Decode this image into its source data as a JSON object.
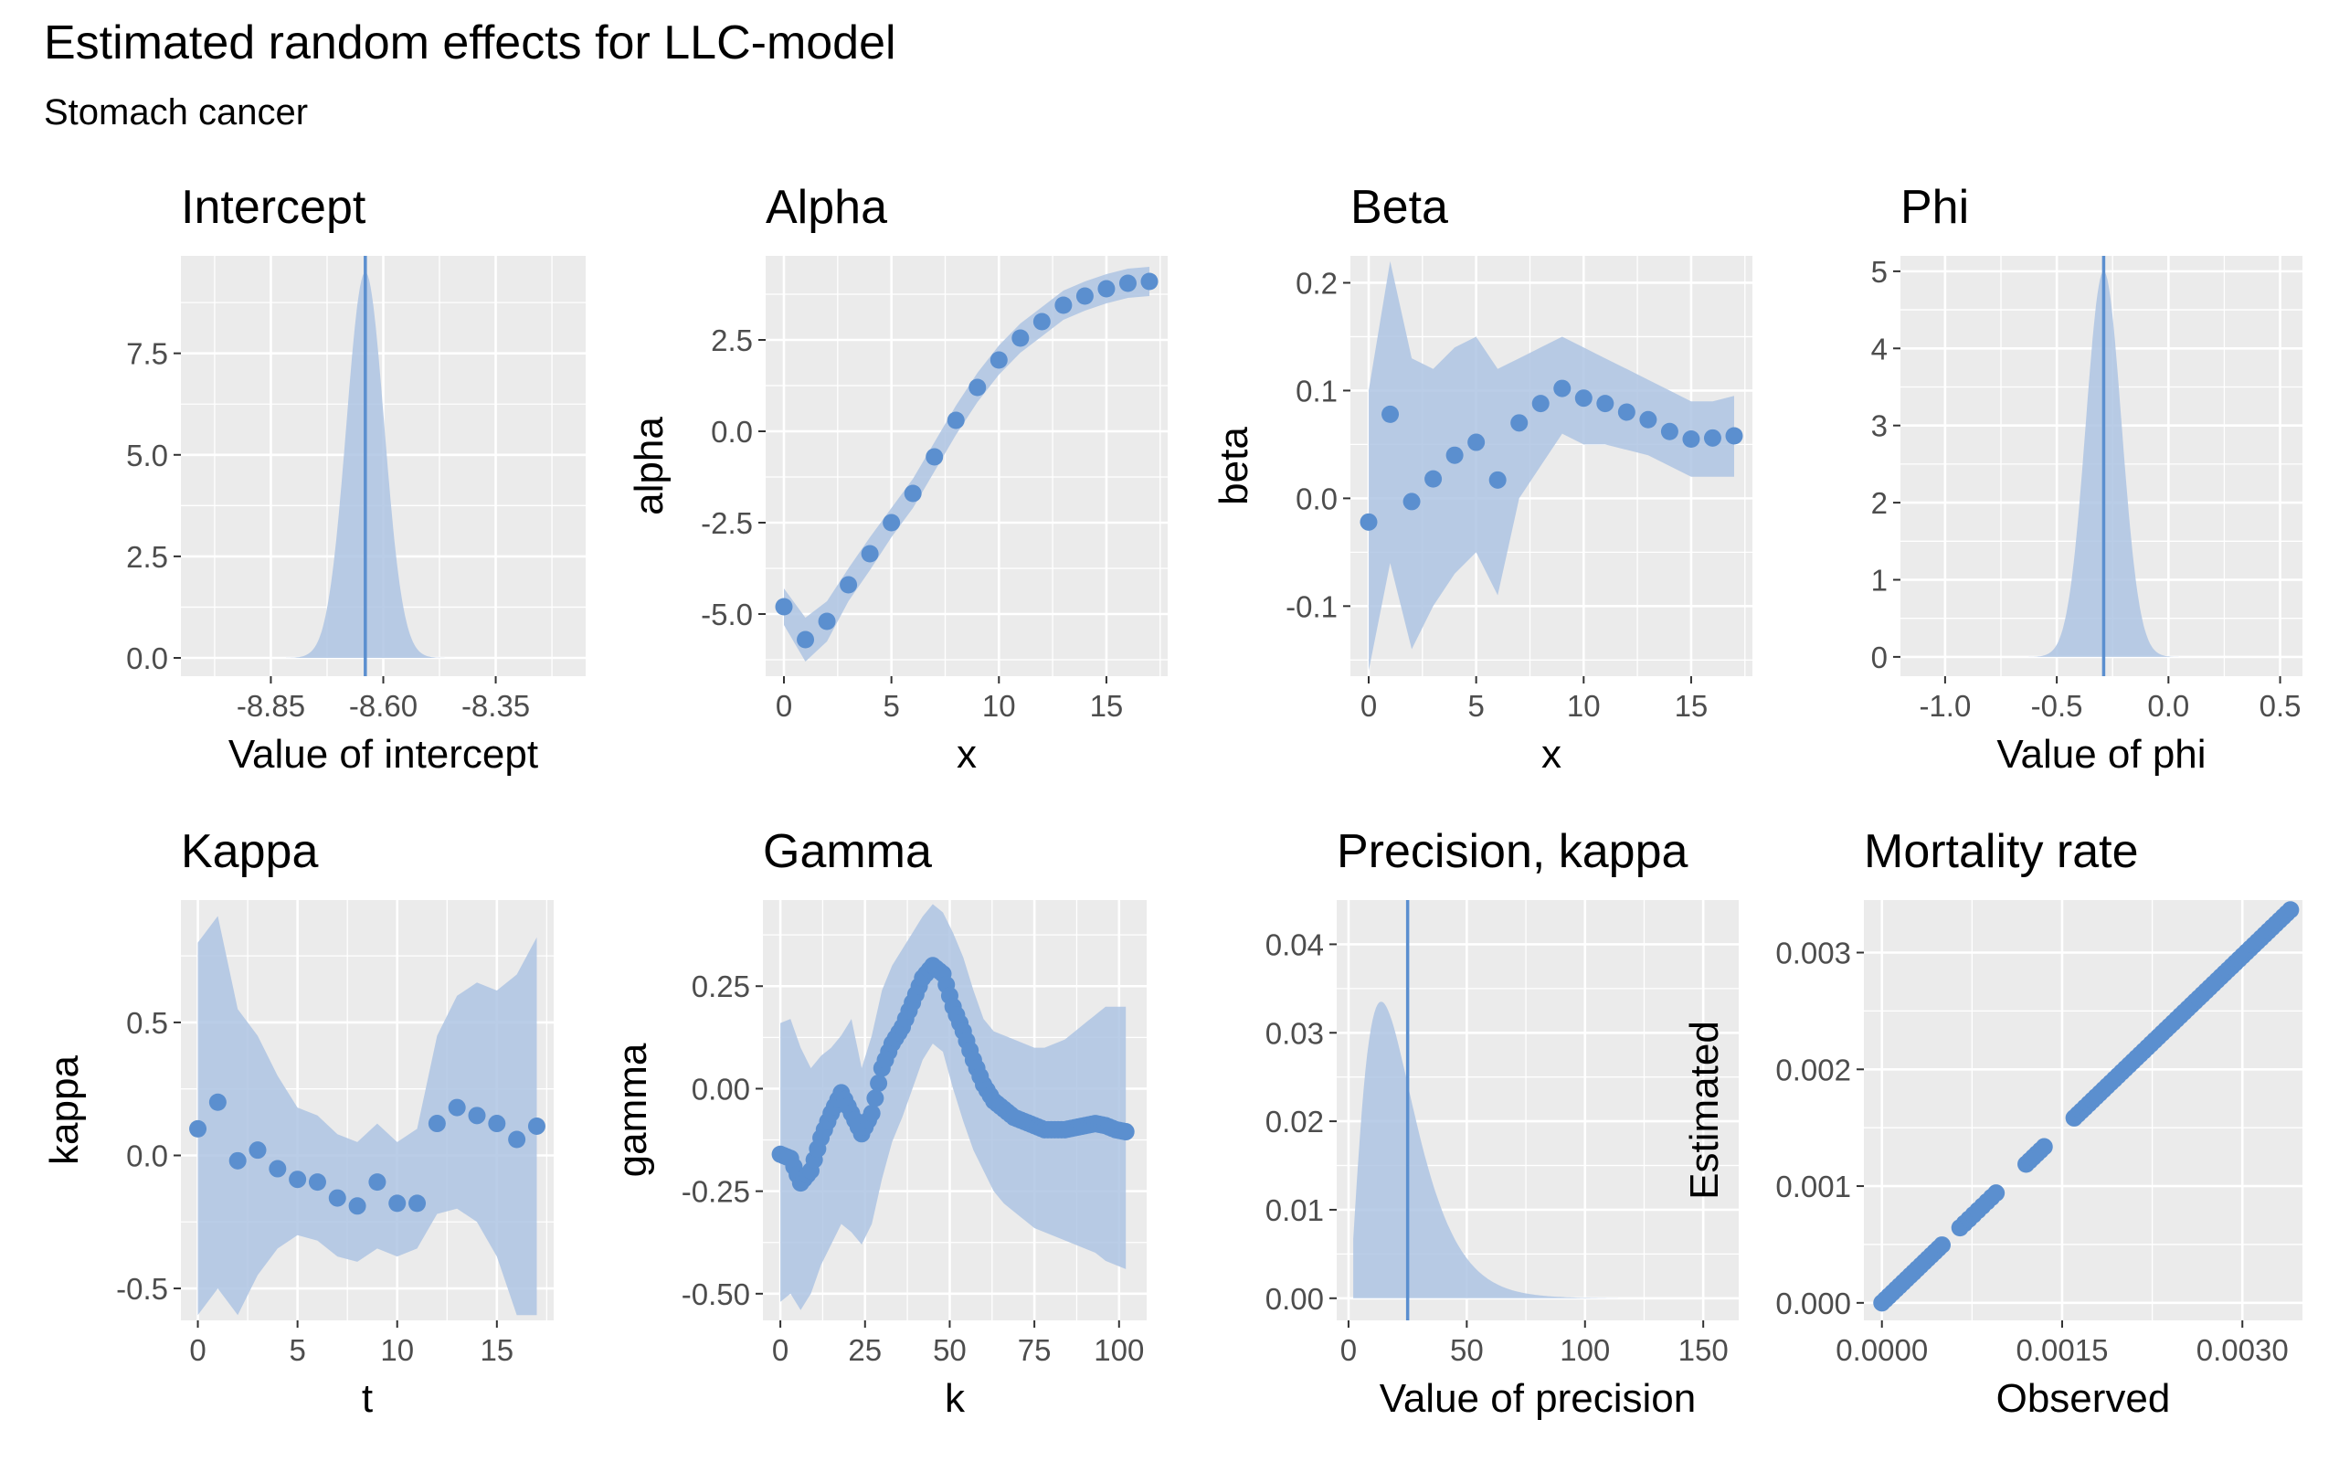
{
  "title": "Estimated random effects for LLC-model",
  "subtitle": "Stomach cancer",
  "colors": {
    "accent": "#5b8fcf",
    "band": "#aec4e3",
    "panel_bg": "#ebebeb",
    "grid": "#ffffff",
    "tick": "#4d4d4d"
  },
  "chart_data": [
    {
      "id": "intercept",
      "type": "area",
      "title": "Intercept",
      "xlabel": "Value of intercept",
      "ylabel": "",
      "xlim": [
        -9.05,
        -8.15
      ],
      "ylim": [
        -0.45,
        9.9
      ],
      "xticks": [
        -8.85,
        -8.6,
        -8.35
      ],
      "xtick_labels": [
        "-8.85",
        "-8.60",
        "-8.35"
      ],
      "yticks": [
        0,
        2.5,
        5,
        7.5
      ],
      "ytick_labels": [
        "0.0",
        "2.5",
        "5.0",
        "7.5"
      ],
      "density": {
        "mean": -8.64,
        "sd": 0.042,
        "peak": 9.5
      },
      "vline": -8.64
    },
    {
      "id": "alpha",
      "type": "scatter",
      "title": "Alpha",
      "xlabel": "x",
      "ylabel": "alpha",
      "xlim": [
        -0.85,
        17.85
      ],
      "ylim": [
        -6.7,
        4.8
      ],
      "xticks": [
        0,
        5,
        10,
        15
      ],
      "xtick_labels": [
        "0",
        "5",
        "10",
        "15"
      ],
      "yticks": [
        -5,
        -2.5,
        0,
        2.5
      ],
      "ytick_labels": [
        "-5.0",
        "-2.5",
        "0.0",
        "2.5"
      ],
      "x": [
        0,
        1,
        2,
        3,
        4,
        5,
        6,
        7,
        8,
        9,
        10,
        11,
        12,
        13,
        14,
        15,
        16,
        17
      ],
      "y": [
        -4.8,
        -5.7,
        -5.2,
        -4.2,
        -3.35,
        -2.5,
        -1.7,
        -0.7,
        0.3,
        1.2,
        1.95,
        2.55,
        3.0,
        3.45,
        3.7,
        3.9,
        4.05,
        4.1
      ],
      "lower": [
        -5.3,
        -6.3,
        -5.75,
        -4.65,
        -3.8,
        -2.9,
        -2.1,
        -1.1,
        -0.1,
        0.8,
        1.55,
        2.15,
        2.6,
        3.05,
        3.3,
        3.5,
        3.65,
        3.7
      ],
      "upper": [
        -4.3,
        -5.1,
        -4.65,
        -3.75,
        -2.9,
        -2.1,
        -1.3,
        -0.3,
        0.7,
        1.6,
        2.35,
        2.95,
        3.4,
        3.85,
        4.1,
        4.3,
        4.45,
        4.5
      ]
    },
    {
      "id": "beta",
      "type": "scatter",
      "title": "Beta",
      "xlabel": "x",
      "ylabel": "beta",
      "xlim": [
        -0.85,
        17.85
      ],
      "ylim": [
        -0.165,
        0.225
      ],
      "xticks": [
        0,
        5,
        10,
        15
      ],
      "xtick_labels": [
        "0",
        "5",
        "10",
        "15"
      ],
      "yticks": [
        -0.1,
        0,
        0.1,
        0.2
      ],
      "ytick_labels": [
        "-0.1",
        "0.0",
        "0.1",
        "0.2"
      ],
      "x": [
        0,
        1,
        2,
        3,
        4,
        5,
        6,
        7,
        8,
        9,
        10,
        11,
        12,
        13,
        14,
        15,
        16,
        17
      ],
      "y": [
        -0.022,
        0.078,
        -0.003,
        0.018,
        0.04,
        0.052,
        0.017,
        0.07,
        0.088,
        0.102,
        0.093,
        0.088,
        0.08,
        0.073,
        0.062,
        0.055,
        0.056,
        0.058
      ],
      "lower": [
        -0.16,
        -0.06,
        -0.14,
        -0.1,
        -0.07,
        -0.05,
        -0.09,
        0.0,
        0.03,
        0.06,
        0.05,
        0.05,
        0.045,
        0.04,
        0.03,
        0.02,
        0.02,
        0.02
      ],
      "upper": [
        0.1,
        0.22,
        0.13,
        0.12,
        0.14,
        0.15,
        0.12,
        0.13,
        0.14,
        0.15,
        0.14,
        0.13,
        0.12,
        0.11,
        0.1,
        0.09,
        0.09,
        0.095
      ]
    },
    {
      "id": "phi",
      "type": "area",
      "title": "Phi",
      "xlabel": "Value of phi",
      "ylabel": "",
      "xlim": [
        -1.2,
        0.6
      ],
      "ylim": [
        -0.25,
        5.2
      ],
      "xticks": [
        -1,
        -0.5,
        0,
        0.5
      ],
      "xtick_labels": [
        "-1.0",
        "-0.5",
        "0.0",
        "0.5"
      ],
      "yticks": [
        0,
        1,
        2,
        3,
        4,
        5
      ],
      "ytick_labels": [
        "0",
        "1",
        "2",
        "3",
        "4",
        "5"
      ],
      "density": {
        "mean": -0.29,
        "sd": 0.08,
        "peak": 5.0
      },
      "vline": -0.29
    },
    {
      "id": "kappa",
      "type": "scatter",
      "title": "Kappa",
      "xlabel": "t",
      "ylabel": "kappa",
      "xlim": [
        -0.85,
        17.85
      ],
      "ylim": [
        -0.62,
        0.96
      ],
      "xticks": [
        0,
        5,
        10,
        15
      ],
      "xtick_labels": [
        "0",
        "5",
        "10",
        "15"
      ],
      "yticks": [
        -0.5,
        0,
        0.5
      ],
      "ytick_labels": [
        "-0.5",
        "0.0",
        "0.5"
      ],
      "x": [
        0,
        1,
        2,
        3,
        4,
        5,
        6,
        7,
        8,
        9,
        10,
        11,
        12,
        13,
        14,
        15,
        16,
        17
      ],
      "y": [
        0.1,
        0.2,
        -0.02,
        0.02,
        -0.05,
        -0.09,
        -0.1,
        -0.16,
        -0.19,
        -0.1,
        -0.18,
        -0.18,
        0.12,
        0.18,
        0.15,
        0.12,
        0.06,
        0.11
      ],
      "lower": [
        -0.6,
        -0.5,
        -0.6,
        -0.45,
        -0.35,
        -0.3,
        -0.32,
        -0.38,
        -0.4,
        -0.35,
        -0.38,
        -0.35,
        -0.22,
        -0.2,
        -0.25,
        -0.38,
        -0.6,
        -0.6
      ],
      "upper": [
        0.8,
        0.9,
        0.55,
        0.45,
        0.3,
        0.18,
        0.15,
        0.08,
        0.05,
        0.12,
        0.05,
        0.1,
        0.45,
        0.6,
        0.65,
        0.62,
        0.68,
        0.82
      ]
    },
    {
      "id": "gamma",
      "type": "scatter",
      "title": "Gamma",
      "xlabel": "k",
      "ylabel": "gamma",
      "xlim": [
        -5.15,
        108.15
      ],
      "ylim": [
        -0.565,
        0.46
      ],
      "xticks": [
        0,
        25,
        50,
        75,
        100
      ],
      "xtick_labels": [
        "0",
        "25",
        "50",
        "75",
        "100"
      ],
      "yticks": [
        -0.5,
        -0.25,
        0,
        0.25
      ],
      "ytick_labels": [
        "-0.50",
        "-0.25",
        "0.00",
        "0.25"
      ],
      "knots_x": [
        0,
        3,
        6,
        9,
        12,
        15,
        18,
        21,
        24,
        27,
        30,
        33,
        36,
        39,
        42,
        45,
        48,
        51,
        54,
        57,
        60,
        63,
        66,
        69,
        72,
        75,
        78,
        81,
        84,
        87,
        90,
        93,
        96,
        99,
        102
      ],
      "knots_y": [
        -0.16,
        -0.17,
        -0.23,
        -0.2,
        -0.12,
        -0.06,
        -0.01,
        -0.06,
        -0.11,
        -0.06,
        0.05,
        0.11,
        0.15,
        0.21,
        0.27,
        0.3,
        0.28,
        0.2,
        0.14,
        0.07,
        0.01,
        -0.03,
        -0.05,
        -0.07,
        -0.08,
        -0.09,
        -0.1,
        -0.1,
        -0.1,
        -0.095,
        -0.09,
        -0.085,
        -0.09,
        -0.1,
        -0.105
      ],
      "knots_lower": [
        -0.52,
        -0.5,
        -0.54,
        -0.5,
        -0.43,
        -0.38,
        -0.33,
        -0.35,
        -0.38,
        -0.33,
        -0.22,
        -0.13,
        -0.07,
        0.0,
        0.07,
        0.11,
        0.09,
        0.0,
        -0.08,
        -0.15,
        -0.2,
        -0.25,
        -0.28,
        -0.3,
        -0.32,
        -0.34,
        -0.35,
        -0.36,
        -0.37,
        -0.38,
        -0.39,
        -0.4,
        -0.42,
        -0.43,
        -0.44
      ],
      "knots_upper": [
        0.16,
        0.17,
        0.1,
        0.05,
        0.08,
        0.1,
        0.13,
        0.17,
        0.05,
        0.13,
        0.24,
        0.3,
        0.34,
        0.38,
        0.42,
        0.45,
        0.43,
        0.38,
        0.32,
        0.24,
        0.17,
        0.14,
        0.13,
        0.12,
        0.11,
        0.1,
        0.1,
        0.11,
        0.12,
        0.14,
        0.16,
        0.18,
        0.2,
        0.2,
        0.2
      ],
      "n_points": 103
    },
    {
      "id": "precision",
      "type": "area",
      "title": "Precision, kappa",
      "xlabel": "Value of precision",
      "ylabel": "",
      "xlim": [
        -5,
        165
      ],
      "ylim": [
        -0.0025,
        0.045
      ],
      "xticks": [
        0,
        50,
        100,
        150
      ],
      "xtick_labels": [
        "0",
        "50",
        "100",
        "150"
      ],
      "yticks": [
        0,
        0.01,
        0.02,
        0.03,
        0.04
      ],
      "ytick_labels": [
        "0.00",
        "0.01",
        "0.02",
        "0.03",
        "0.04"
      ],
      "density": {
        "shape": 2.5,
        "scale": 9.2,
        "range": [
          2,
          150
        ]
      },
      "vline": 25
    },
    {
      "id": "mortality",
      "type": "scatter",
      "title": "Mortality rate",
      "xlabel": "Observed",
      "ylabel": "Estimated",
      "xlim": [
        -0.00015,
        0.0035
      ],
      "ylim": [
        -0.00015,
        0.00345
      ],
      "xticks": [
        0,
        0.0015,
        0.003
      ],
      "xtick_labels": [
        "0.0000",
        "0.0015",
        "0.0030"
      ],
      "yticks": [
        0,
        0.001,
        0.002,
        0.003
      ],
      "ytick_labels": [
        "0.000",
        "0.001",
        "0.002",
        "0.003"
      ],
      "segments": [
        [
          0,
          0.0005,
          18
        ],
        [
          0.00065,
          0.00095,
          9
        ],
        [
          0.0012,
          0.00135,
          6
        ],
        [
          0.0016,
          0.0034,
          60
        ]
      ]
    }
  ]
}
